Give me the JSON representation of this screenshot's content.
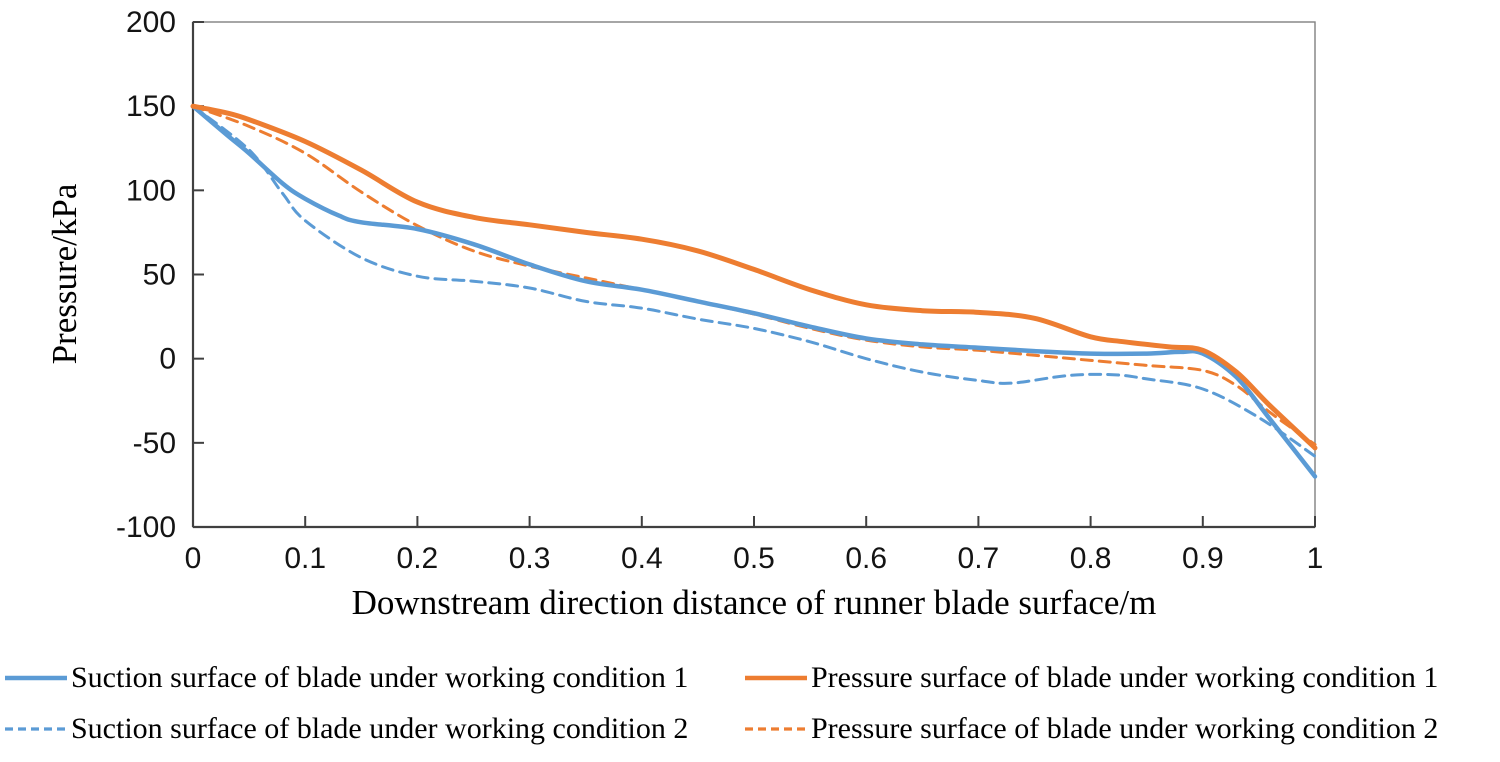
{
  "chart_data": {
    "type": "line",
    "title": "",
    "xlabel": "Downstream direction distance of runner blade surface/m",
    "ylabel": "Pressure/kPa",
    "xlim": [
      0,
      1
    ],
    "ylim": [
      -100,
      200
    ],
    "x_ticks": [
      0,
      0.1,
      0.2,
      0.3,
      0.4,
      0.5,
      0.6,
      0.7,
      0.8,
      0.9,
      1
    ],
    "x_tick_labels": [
      "0",
      "0.1",
      "0.2",
      "0.3",
      "0.4",
      "0.5",
      "0.6",
      "0.7",
      "0.8",
      "0.9",
      "1"
    ],
    "y_ticks": [
      200,
      150,
      100,
      50,
      0,
      -50,
      -100
    ],
    "y_tick_labels": [
      "200",
      "150",
      "100",
      "50",
      "0",
      "-50",
      "-100"
    ],
    "grid": false,
    "legend_position": "bottom",
    "background_color": "#FFFFFF",
    "axis_color": "#404040",
    "frame_color": "#808080",
    "series": [
      {
        "id": "suction-wc1",
        "name": "Suction surface of blade under working condition 1",
        "color": "#5B9BD5",
        "dash": "solid",
        "width": 4.5,
        "points": [
          [
            0,
            150
          ],
          [
            0.03,
            133
          ],
          [
            0.05,
            122
          ],
          [
            0.08,
            104
          ],
          [
            0.1,
            95
          ],
          [
            0.13,
            85
          ],
          [
            0.15,
            81
          ],
          [
            0.2,
            77
          ],
          [
            0.25,
            68
          ],
          [
            0.3,
            56
          ],
          [
            0.35,
            46
          ],
          [
            0.4,
            41
          ],
          [
            0.45,
            34
          ],
          [
            0.5,
            27
          ],
          [
            0.55,
            19
          ],
          [
            0.6,
            12
          ],
          [
            0.65,
            8.5
          ],
          [
            0.7,
            6.5
          ],
          [
            0.75,
            4.5
          ],
          [
            0.8,
            3
          ],
          [
            0.85,
            3
          ],
          [
            0.88,
            4
          ],
          [
            0.9,
            3
          ],
          [
            0.93,
            -11
          ],
          [
            0.96,
            -36
          ],
          [
            1,
            -70
          ]
        ]
      },
      {
        "id": "pressure-wc1",
        "name": "Pressure surface of blade under working condition 1",
        "color": "#ED7D31",
        "dash": "solid",
        "width": 5,
        "points": [
          [
            0,
            150
          ],
          [
            0.03,
            146
          ],
          [
            0.05,
            142
          ],
          [
            0.1,
            129
          ],
          [
            0.15,
            112
          ],
          [
            0.2,
            93
          ],
          [
            0.25,
            84
          ],
          [
            0.3,
            79.5
          ],
          [
            0.35,
            75
          ],
          [
            0.4,
            71
          ],
          [
            0.45,
            64
          ],
          [
            0.5,
            53
          ],
          [
            0.55,
            41
          ],
          [
            0.6,
            32
          ],
          [
            0.65,
            28.5
          ],
          [
            0.7,
            27.5
          ],
          [
            0.75,
            24
          ],
          [
            0.8,
            13
          ],
          [
            0.83,
            10
          ],
          [
            0.87,
            7
          ],
          [
            0.9,
            5
          ],
          [
            0.93,
            -8
          ],
          [
            0.96,
            -28
          ],
          [
            1,
            -53
          ]
        ]
      },
      {
        "id": "suction-wc2",
        "name": "Suction surface of blade under working condition 2",
        "color": "#5B9BD5",
        "dash": "dashed",
        "width": 3,
        "points": [
          [
            0,
            150
          ],
          [
            0.05,
            124
          ],
          [
            0.08,
            98
          ],
          [
            0.1,
            82
          ],
          [
            0.15,
            60
          ],
          [
            0.2,
            49
          ],
          [
            0.25,
            46
          ],
          [
            0.3,
            42
          ],
          [
            0.35,
            34
          ],
          [
            0.4,
            30
          ],
          [
            0.45,
            23.5
          ],
          [
            0.5,
            18
          ],
          [
            0.55,
            10
          ],
          [
            0.6,
            0
          ],
          [
            0.65,
            -8
          ],
          [
            0.7,
            -13
          ],
          [
            0.73,
            -14.5
          ],
          [
            0.78,
            -10
          ],
          [
            0.82,
            -9.5
          ],
          [
            0.85,
            -12
          ],
          [
            0.9,
            -18
          ],
          [
            0.95,
            -35
          ],
          [
            1,
            -58
          ]
        ]
      },
      {
        "id": "pressure-wc2",
        "name": "Pressure surface of blade under working condition 2",
        "color": "#ED7D31",
        "dash": "dashed",
        "width": 3,
        "points": [
          [
            0,
            150
          ],
          [
            0.05,
            138
          ],
          [
            0.1,
            122
          ],
          [
            0.15,
            99
          ],
          [
            0.2,
            79
          ],
          [
            0.25,
            64
          ],
          [
            0.3,
            55
          ],
          [
            0.35,
            48
          ],
          [
            0.4,
            41
          ],
          [
            0.45,
            34
          ],
          [
            0.5,
            26.5
          ],
          [
            0.55,
            18
          ],
          [
            0.6,
            11
          ],
          [
            0.65,
            7
          ],
          [
            0.7,
            5
          ],
          [
            0.75,
            2
          ],
          [
            0.8,
            -1
          ],
          [
            0.85,
            -4
          ],
          [
            0.9,
            -7
          ],
          [
            0.93,
            -16
          ],
          [
            0.96,
            -32
          ],
          [
            1,
            -51
          ]
        ]
      }
    ]
  }
}
